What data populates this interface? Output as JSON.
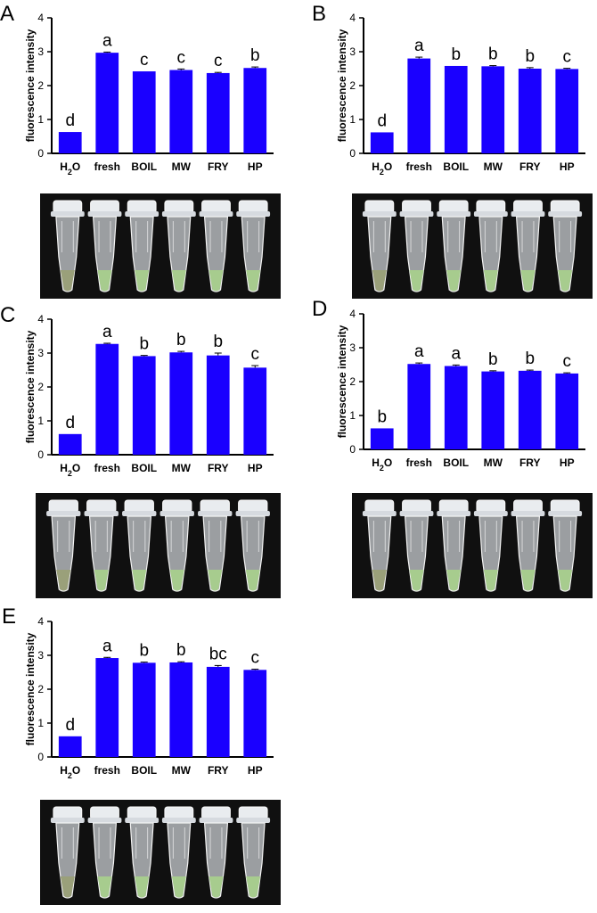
{
  "colors": {
    "bar": "#1a00ff",
    "photo_bg": "#101010",
    "liquid_water": "#9aa07a",
    "liquid_sample": "#a7cc8e"
  },
  "chart_data": [
    {
      "panel": "A",
      "type": "bar",
      "categories": [
        "H2O",
        "fresh",
        "BOIL",
        "MW",
        "FRY",
        "HP"
      ],
      "values": [
        0.63,
        2.97,
        2.42,
        2.46,
        2.37,
        2.52
      ],
      "errors": [
        0.0,
        0.02,
        0.0,
        0.03,
        0.02,
        0.03
      ],
      "labels": [
        "d",
        "a",
        "c",
        "c",
        "c",
        "b"
      ],
      "ylabel": "fluorescence intensity",
      "ylim": [
        0,
        4
      ],
      "yticks": [
        0,
        1,
        2,
        3,
        4
      ]
    },
    {
      "panel": "B",
      "type": "bar",
      "categories": [
        "H2O",
        "fresh",
        "BOIL",
        "MW",
        "FRY",
        "HP"
      ],
      "values": [
        0.62,
        2.8,
        2.58,
        2.57,
        2.5,
        2.49
      ],
      "errors": [
        0.0,
        0.04,
        0.0,
        0.02,
        0.03,
        0.02
      ],
      "labels": [
        "d",
        "a",
        "b",
        "b",
        "b",
        "c"
      ],
      "ylabel": "fluorescence intensity",
      "ylim": [
        0,
        4
      ],
      "yticks": [
        0,
        1,
        2,
        3,
        4
      ]
    },
    {
      "panel": "C",
      "type": "bar",
      "categories": [
        "H2O",
        "fresh",
        "BOIL",
        "MW",
        "FRY",
        "HP"
      ],
      "values": [
        0.61,
        3.27,
        2.91,
        3.02,
        2.93,
        2.57
      ],
      "errors": [
        0.0,
        0.02,
        0.02,
        0.03,
        0.07,
        0.06
      ],
      "labels": [
        "d",
        "a",
        "b",
        "b",
        "b",
        "c"
      ],
      "ylabel": "fluorescence intensity",
      "ylim": [
        0,
        4
      ],
      "yticks": [
        0,
        1,
        2,
        3,
        4
      ]
    },
    {
      "panel": "D",
      "type": "bar",
      "categories": [
        "H2O",
        "fresh",
        "BOIL",
        "MW",
        "FRY",
        "HP"
      ],
      "values": [
        0.62,
        2.52,
        2.46,
        2.3,
        2.32,
        2.24
      ],
      "errors": [
        0.0,
        0.03,
        0.03,
        0.02,
        0.02,
        0.02
      ],
      "labels": [
        "b",
        "a",
        "a",
        "b",
        "b",
        "c"
      ],
      "ylabel": "fluorescence intensity",
      "ylim": [
        0,
        4
      ],
      "yticks": [
        0,
        1,
        2,
        3,
        4
      ]
    },
    {
      "panel": "E",
      "type": "bar",
      "categories": [
        "H2O",
        "fresh",
        "BOIL",
        "MW",
        "FRY",
        "HP"
      ],
      "values": [
        0.61,
        2.92,
        2.78,
        2.79,
        2.66,
        2.57
      ],
      "errors": [
        0.0,
        0.02,
        0.02,
        0.02,
        0.04,
        0.02
      ],
      "labels": [
        "d",
        "a",
        "b",
        "b",
        "bc",
        "c"
      ],
      "ylabel": "fluorescence intensity",
      "ylim": [
        0,
        4
      ],
      "yticks": [
        0,
        1,
        2,
        3,
        4
      ]
    }
  ]
}
